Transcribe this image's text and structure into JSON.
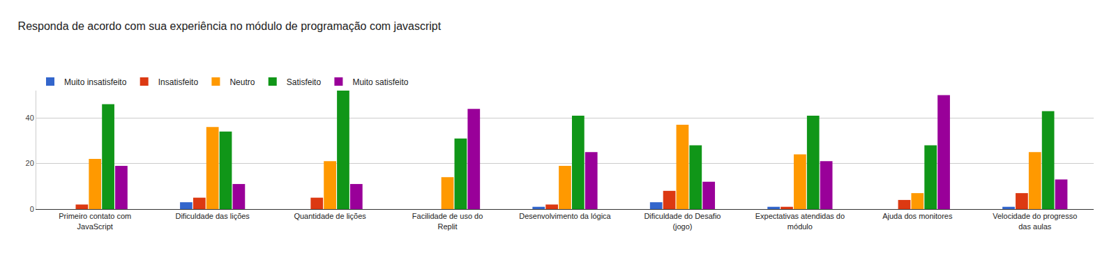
{
  "chart_data": {
    "type": "bar",
    "title": "Responda de acordo com sua experiência no módulo de programação com javascript",
    "categories": [
      "Primeiro contato com JavaScript",
      "Dificuldade das lições",
      "Quantidade de lições",
      "Facilidade de uso do Replit",
      "Desenvolvimento da lógica",
      "Dificuldade do Desafio (jogo)",
      "Expectativas atendidas do módulo",
      "Ajuda dos monitores",
      "Velocidade do progresso das aulas"
    ],
    "series": [
      {
        "name": "Muito insatisfeito",
        "color": "#3366cc",
        "values": [
          0,
          3,
          0,
          0,
          1,
          3,
          1,
          0,
          1
        ]
      },
      {
        "name": "Insatisfeito",
        "color": "#dc3912",
        "values": [
          2,
          5,
          5,
          0,
          2,
          8,
          1,
          4,
          7
        ]
      },
      {
        "name": "Neutro",
        "color": "#ff9900",
        "values": [
          22,
          36,
          21,
          14,
          19,
          37,
          24,
          7,
          25
        ]
      },
      {
        "name": "Satisfeito",
        "color": "#109618",
        "values": [
          46,
          34,
          52,
          31,
          41,
          28,
          41,
          28,
          43
        ]
      },
      {
        "name": "Muito satisfeito",
        "color": "#990099",
        "values": [
          19,
          11,
          11,
          44,
          25,
          12,
          21,
          50,
          13
        ]
      }
    ],
    "ylim": [
      0,
      52
    ],
    "yticks": [
      0,
      20,
      40
    ],
    "grid": true,
    "legend": "top"
  }
}
